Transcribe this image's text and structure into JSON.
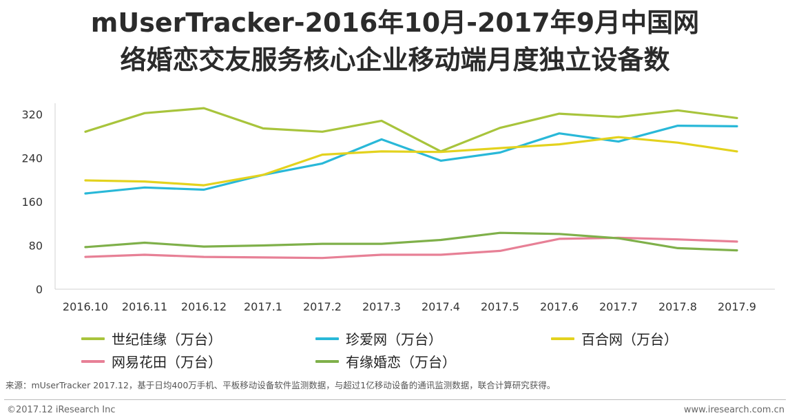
{
  "title": {
    "line1": "mUserTracker-2016年10月-2017年9月中国网",
    "line2": "络婚恋交友服务核心企业移动端月度独立设备数"
  },
  "chart_data": {
    "type": "line",
    "categories": [
      "2016.10",
      "2016.11",
      "2016.12",
      "2017.1",
      "2017.2",
      "2017.3",
      "2017.4",
      "2017.5",
      "2017.6",
      "2017.7",
      "2017.8",
      "2017.9"
    ],
    "y_ticks": [
      "0",
      "80",
      "160",
      "240",
      "320"
    ],
    "ylim": [
      0,
      340
    ],
    "grid": false,
    "series": [
      {
        "name": "世纪佳缘（万台）",
        "color": "#a8c43c",
        "values": [
          288,
          322,
          331,
          294,
          288,
          308,
          252,
          295,
          321,
          315,
          327,
          313
        ]
      },
      {
        "name": "珍爱网（万台）",
        "color": "#29b8d8",
        "values": [
          175,
          186,
          182,
          209,
          230,
          274,
          235,
          250,
          285,
          270,
          299,
          298
        ]
      },
      {
        "name": "百合网（万台）",
        "color": "#e3d21e",
        "values": [
          199,
          197,
          190,
          209,
          246,
          252,
          251,
          258,
          265,
          278,
          268,
          252
        ]
      },
      {
        "name": "网易花田（万台）",
        "color": "#e78096",
        "values": [
          59,
          63,
          59,
          58,
          57,
          63,
          63,
          70,
          92,
          94,
          91,
          87
        ]
      },
      {
        "name": "有缘婚恋（万台）",
        "color": "#7fb04a",
        "values": [
          77,
          85,
          78,
          80,
          83,
          83,
          90,
          103,
          101,
          93,
          75,
          71
        ]
      }
    ]
  },
  "source": "来源：mUserTracker 2017.12，基于日均400万手机、平板移动设备软件监测数据，与超过1亿移动设备的通讯监测数据，联合计算研究获得。",
  "footer": {
    "left": "©2017.12 iResearch Inc",
    "right": "www.iresearch.com.cn"
  }
}
